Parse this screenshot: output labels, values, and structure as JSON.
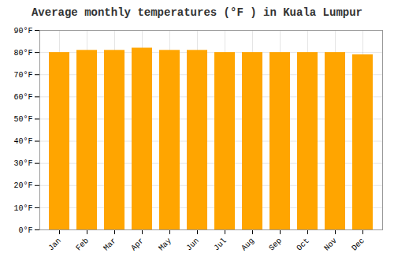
{
  "chart_data": {
    "type": "bar",
    "title": "Average monthly temperatures (°F ) in Kuala Lumpur",
    "categories": [
      "Jan",
      "Feb",
      "Mar",
      "Apr",
      "May",
      "Jun",
      "Jul",
      "Aug",
      "Sep",
      "Oct",
      "Nov",
      "Dec"
    ],
    "values": [
      80,
      81,
      81,
      82,
      81,
      81,
      80,
      80,
      80,
      80,
      80,
      79
    ],
    "color": "#FFA500",
    "ylim": [
      0,
      90
    ],
    "yticks": [
      {
        "value": 0,
        "label": "0°F"
      },
      {
        "value": 10,
        "label": "10°F"
      },
      {
        "value": 20,
        "label": "20°F"
      },
      {
        "value": 30,
        "label": "30°F"
      },
      {
        "value": 40,
        "label": "40°F"
      },
      {
        "value": 50,
        "label": "50°F"
      },
      {
        "value": 60,
        "label": "60°F"
      },
      {
        "value": 70,
        "label": "70°F"
      },
      {
        "value": 80,
        "label": "80°F"
      },
      {
        "value": 90,
        "label": "90°F"
      }
    ],
    "grid": true
  }
}
